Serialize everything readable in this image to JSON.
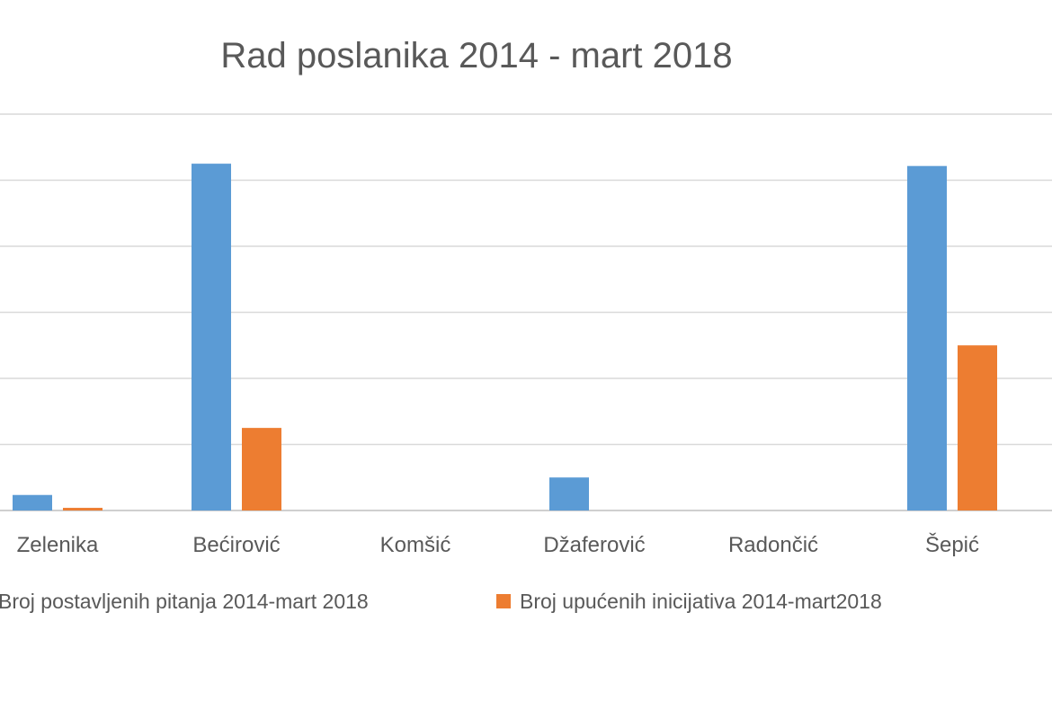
{
  "chart_data": {
    "type": "bar",
    "title": "Rad poslanika 2014 - mart 2018",
    "categories": [
      "Zelenika",
      "Bećirović",
      "Komšić",
      "Džaferović",
      "Radončić",
      "Šepić"
    ],
    "series": [
      {
        "name": "Broj postavljenih pitanja 2014-mart 2018",
        "color": "#5b9bd5",
        "values": [
          4.7,
          105.0,
          0,
          10.0,
          0,
          104.3
        ]
      },
      {
        "name": "Broj upućenih inicijativa 2014-mart2018",
        "color": "#ed7d31",
        "values": [
          0.8,
          25.0,
          0,
          0,
          0,
          50.0
        ]
      }
    ],
    "ylim": [
      0,
      120
    ],
    "grid": true,
    "legend": "bottom"
  }
}
